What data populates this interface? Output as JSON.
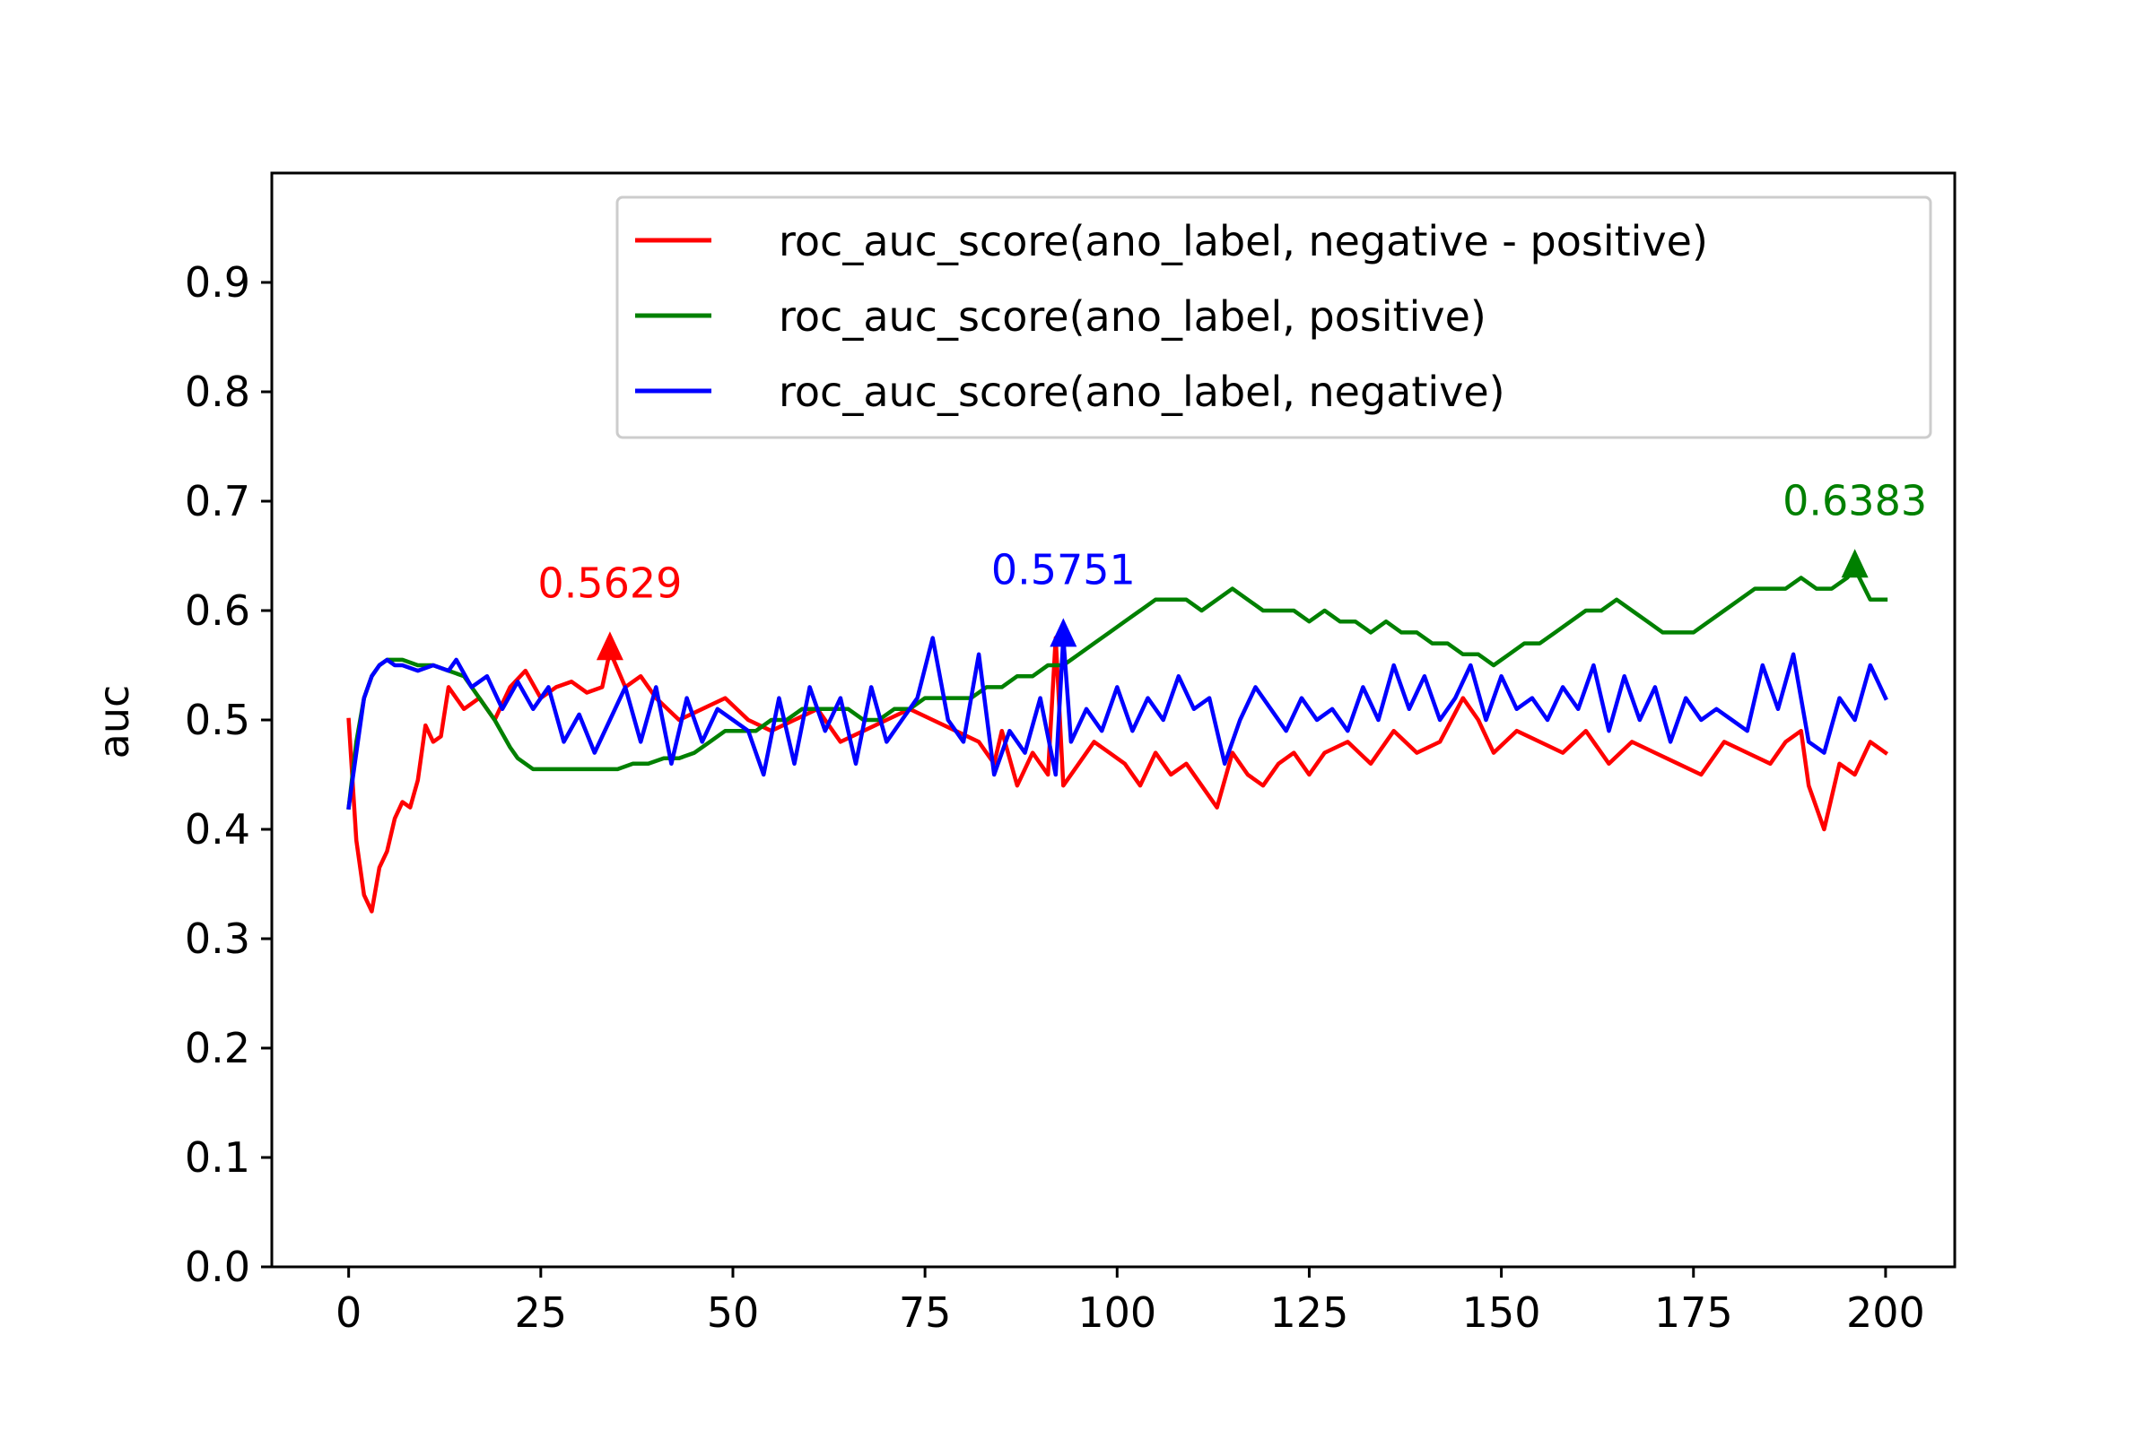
{
  "chart_data": {
    "type": "line",
    "title": "",
    "xlabel": "",
    "ylabel": "auc",
    "xlim": [
      -10,
      209
    ],
    "ylim": [
      0.0,
      1.0
    ],
    "xticks": [
      0,
      25,
      50,
      75,
      100,
      125,
      150,
      175,
      200
    ],
    "xtick_labels": [
      "0",
      "25",
      "50",
      "75",
      "100",
      "125",
      "150",
      "175",
      "200"
    ],
    "yticks": [
      0.0,
      0.1,
      0.2,
      0.3,
      0.4,
      0.5,
      0.6,
      0.7,
      0.8,
      0.9
    ],
    "ytick_labels": [
      "0.0",
      "0.1",
      "0.2",
      "0.3",
      "0.4",
      "0.5",
      "0.6",
      "0.7",
      "0.8",
      "0.9"
    ],
    "grid": false,
    "legend_position": "top-right",
    "series": [
      {
        "name": "roc_auc_score(ano_label, negative - positive)",
        "color": "#ff0000",
        "x": [
          0,
          1,
          2,
          3,
          4,
          5,
          6,
          7,
          8,
          9,
          10,
          11,
          12,
          13,
          15,
          17,
          19,
          21,
          23,
          25,
          27,
          29,
          31,
          33,
          34,
          36,
          38,
          40,
          43,
          46,
          49,
          52,
          55,
          58,
          61,
          64,
          67,
          70,
          73,
          76,
          79,
          82,
          84,
          85,
          87,
          89,
          91,
          92,
          93,
          95,
          97,
          99,
          101,
          103,
          105,
          107,
          109,
          111,
          113,
          115,
          117,
          119,
          121,
          123,
          125,
          127,
          130,
          133,
          136,
          139,
          142,
          145,
          147,
          149,
          152,
          155,
          158,
          161,
          164,
          167,
          170,
          173,
          176,
          179,
          182,
          185,
          187,
          189,
          190,
          192,
          194,
          196,
          198,
          200
        ],
        "y": [
          0.5,
          0.39,
          0.34,
          0.325,
          0.365,
          0.38,
          0.41,
          0.425,
          0.42,
          0.445,
          0.495,
          0.48,
          0.485,
          0.53,
          0.51,
          0.52,
          0.5,
          0.53,
          0.545,
          0.52,
          0.53,
          0.535,
          0.525,
          0.53,
          0.5629,
          0.53,
          0.54,
          0.52,
          0.5,
          0.51,
          0.52,
          0.5,
          0.49,
          0.5,
          0.51,
          0.48,
          0.49,
          0.5,
          0.51,
          0.5,
          0.49,
          0.48,
          0.46,
          0.49,
          0.44,
          0.47,
          0.45,
          0.5751,
          0.44,
          0.46,
          0.48,
          0.47,
          0.46,
          0.44,
          0.47,
          0.45,
          0.46,
          0.44,
          0.42,
          0.47,
          0.45,
          0.44,
          0.46,
          0.47,
          0.45,
          0.47,
          0.48,
          0.46,
          0.49,
          0.47,
          0.48,
          0.52,
          0.5,
          0.47,
          0.49,
          0.48,
          0.47,
          0.49,
          0.46,
          0.48,
          0.47,
          0.46,
          0.45,
          0.48,
          0.47,
          0.46,
          0.48,
          0.49,
          0.44,
          0.4,
          0.46,
          0.45,
          0.48,
          0.47
        ]
      },
      {
        "name": "roc_auc_score(ano_label, positive)",
        "color": "#008000",
        "x": [
          0,
          1,
          2,
          3,
          4,
          5,
          6,
          7,
          9,
          11,
          13,
          15,
          17,
          19,
          21,
          22,
          23,
          24,
          25,
          27,
          29,
          31,
          33,
          35,
          37,
          39,
          41,
          43,
          45,
          47,
          49,
          51,
          53,
          55,
          57,
          59,
          61,
          63,
          65,
          67,
          69,
          71,
          73,
          75,
          77,
          79,
          81,
          83,
          85,
          87,
          89,
          91,
          93,
          95,
          97,
          99,
          101,
          103,
          105,
          107,
          109,
          111,
          113,
          115,
          117,
          119,
          121,
          123,
          125,
          127,
          129,
          131,
          133,
          135,
          137,
          139,
          141,
          143,
          145,
          147,
          149,
          151,
          153,
          155,
          157,
          159,
          161,
          163,
          165,
          167,
          169,
          171,
          173,
          175,
          177,
          179,
          181,
          183,
          185,
          187,
          189,
          191,
          193,
          195,
          196,
          198,
          200
        ],
        "y": [
          0.42,
          0.48,
          0.52,
          0.54,
          0.55,
          0.555,
          0.555,
          0.555,
          0.55,
          0.55,
          0.545,
          0.54,
          0.52,
          0.5,
          0.475,
          0.465,
          0.46,
          0.455,
          0.455,
          0.455,
          0.455,
          0.455,
          0.455,
          0.455,
          0.46,
          0.46,
          0.465,
          0.465,
          0.47,
          0.48,
          0.49,
          0.49,
          0.49,
          0.5,
          0.5,
          0.51,
          0.51,
          0.51,
          0.51,
          0.5,
          0.5,
          0.51,
          0.51,
          0.52,
          0.52,
          0.52,
          0.52,
          0.53,
          0.53,
          0.54,
          0.54,
          0.55,
          0.55,
          0.56,
          0.57,
          0.58,
          0.59,
          0.6,
          0.61,
          0.61,
          0.61,
          0.6,
          0.61,
          0.62,
          0.61,
          0.6,
          0.6,
          0.6,
          0.59,
          0.6,
          0.59,
          0.59,
          0.58,
          0.59,
          0.58,
          0.58,
          0.57,
          0.57,
          0.56,
          0.56,
          0.55,
          0.56,
          0.57,
          0.57,
          0.58,
          0.59,
          0.6,
          0.6,
          0.61,
          0.6,
          0.59,
          0.58,
          0.58,
          0.58,
          0.59,
          0.6,
          0.61,
          0.62,
          0.62,
          0.62,
          0.63,
          0.62,
          0.62,
          0.63,
          0.6383,
          0.61,
          0.61
        ]
      },
      {
        "name": "roc_auc_score(ano_label, negative)",
        "color": "#0000ff",
        "x": [
          0,
          1,
          2,
          3,
          4,
          5,
          6,
          7,
          9,
          11,
          13,
          14,
          16,
          18,
          20,
          22,
          24,
          26,
          28,
          30,
          32,
          34,
          36,
          38,
          40,
          42,
          44,
          46,
          48,
          50,
          52,
          54,
          56,
          58,
          60,
          62,
          64,
          66,
          68,
          70,
          72,
          74,
          76,
          78,
          80,
          82,
          84,
          86,
          88,
          90,
          92,
          93,
          94,
          96,
          98,
          100,
          102,
          104,
          106,
          108,
          110,
          112,
          114,
          116,
          118,
          120,
          122,
          124,
          126,
          128,
          130,
          132,
          134,
          136,
          138,
          140,
          142,
          144,
          146,
          148,
          150,
          152,
          154,
          156,
          158,
          160,
          162,
          164,
          166,
          168,
          170,
          172,
          174,
          176,
          178,
          180,
          182,
          184,
          186,
          188,
          190,
          192,
          194,
          196,
          198,
          200
        ],
        "y": [
          0.42,
          0.47,
          0.52,
          0.54,
          0.55,
          0.555,
          0.55,
          0.55,
          0.545,
          0.55,
          0.545,
          0.555,
          0.53,
          0.54,
          0.51,
          0.535,
          0.51,
          0.53,
          0.48,
          0.505,
          0.47,
          0.5,
          0.53,
          0.48,
          0.53,
          0.46,
          0.52,
          0.48,
          0.51,
          0.5,
          0.49,
          0.45,
          0.52,
          0.46,
          0.53,
          0.49,
          0.52,
          0.46,
          0.53,
          0.48,
          0.5,
          0.52,
          0.575,
          0.5,
          0.48,
          0.56,
          0.45,
          0.49,
          0.47,
          0.52,
          0.45,
          0.5751,
          0.48,
          0.51,
          0.49,
          0.53,
          0.49,
          0.52,
          0.5,
          0.54,
          0.51,
          0.52,
          0.46,
          0.5,
          0.53,
          0.51,
          0.49,
          0.52,
          0.5,
          0.51,
          0.49,
          0.53,
          0.5,
          0.55,
          0.51,
          0.54,
          0.5,
          0.52,
          0.55,
          0.5,
          0.54,
          0.51,
          0.52,
          0.5,
          0.53,
          0.51,
          0.55,
          0.49,
          0.54,
          0.5,
          0.53,
          0.48,
          0.52,
          0.5,
          0.51,
          0.5,
          0.49,
          0.55,
          0.51,
          0.56,
          0.48,
          0.47,
          0.52,
          0.5,
          0.55,
          0.52
        ]
      }
    ],
    "annotations": [
      {
        "text": "0.5629",
        "x": 34,
        "y": 0.5629,
        "color": "#ff0000"
      },
      {
        "text": "0.5751",
        "x": 93,
        "y": 0.5751,
        "color": "#0000ff"
      },
      {
        "text": "0.6383",
        "x": 196,
        "y": 0.6383,
        "color": "#008000"
      }
    ]
  }
}
